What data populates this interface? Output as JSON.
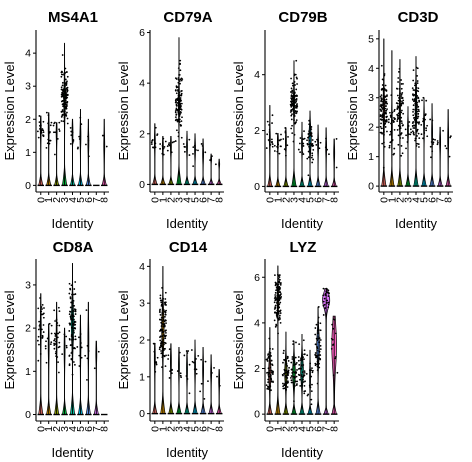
{
  "colors": {
    "0": "#F8766D",
    "1": "#D39200",
    "2": "#93AA00",
    "3": "#00BA38",
    "4": "#00C19F",
    "5": "#00B9E3",
    "6": "#619CFF",
    "7": "#DB72FB",
    "8": "#FF61C3"
  },
  "chart_data": [
    {
      "type": "violin",
      "title": "MS4A1",
      "xlabel": "Identity",
      "ylabel": "Expression Level",
      "categories": [
        "0",
        "1",
        "2",
        "3",
        "4",
        "5",
        "6",
        "7",
        "8"
      ],
      "ylim": [
        -0.2,
        4.7
      ],
      "yticks": [
        0,
        1,
        2,
        3,
        4
      ],
      "series": [
        {
          "category": "0",
          "max": 2.1,
          "center": 1.7,
          "spread": 0.25,
          "npts": 18
        },
        {
          "category": "1",
          "max": 2.2,
          "center": 1.7,
          "spread": 0.3,
          "npts": 14
        },
        {
          "category": "2",
          "max": 1.9,
          "center": 1.6,
          "spread": 0.25,
          "npts": 10
        },
        {
          "category": "3",
          "max": 4.3,
          "center": 2.6,
          "spread": 0.45,
          "npts": 120,
          "violin_width": 0.2
        },
        {
          "category": "4",
          "max": 2.0,
          "center": 1.6,
          "spread": 0.25,
          "npts": 8
        },
        {
          "category": "5",
          "max": 2.3,
          "center": 1.5,
          "spread": 0.3,
          "npts": 6
        },
        {
          "category": "6",
          "max": 2.0,
          "center": 1.3,
          "spread": 0.3,
          "npts": 4
        },
        {
          "category": "7",
          "max": 0.0,
          "npts": 0
        },
        {
          "category": "8",
          "max": 2.0,
          "center": 1.2,
          "spread": 0.3,
          "npts": 2
        }
      ]
    },
    {
      "type": "violin",
      "title": "CD79A",
      "xlabel": "Identity",
      "ylabel": "Expression Level",
      "categories": [
        "0",
        "1",
        "2",
        "3",
        "4",
        "5",
        "6",
        "7",
        "8"
      ],
      "ylim": [
        -0.3,
        6.1
      ],
      "yticks": [
        0,
        2,
        4,
        6
      ],
      "series": [
        {
          "category": "0",
          "max": 2.4,
          "center": 1.7,
          "spread": 0.3,
          "npts": 12
        },
        {
          "category": "1",
          "max": 1.9,
          "center": 1.5,
          "spread": 0.25,
          "npts": 10
        },
        {
          "category": "2",
          "max": 1.9,
          "center": 1.5,
          "spread": 0.3,
          "npts": 9
        },
        {
          "category": "3",
          "max": 5.8,
          "center": 3.2,
          "spread": 0.55,
          "npts": 120,
          "violin_width": 0.15
        },
        {
          "category": "4",
          "max": 2.1,
          "center": 1.5,
          "spread": 0.3,
          "npts": 6
        },
        {
          "category": "5",
          "max": 2.0,
          "center": 1.4,
          "spread": 0.3,
          "npts": 6
        },
        {
          "category": "6",
          "max": 1.8,
          "center": 1.2,
          "spread": 0.3,
          "npts": 3
        },
        {
          "category": "7",
          "max": 1.2,
          "center": 1.0,
          "spread": 0.1,
          "npts": 2
        },
        {
          "category": "8",
          "max": 1.0,
          "center": 0.8,
          "spread": 0.1,
          "npts": 1
        }
      ]
    },
    {
      "type": "violin",
      "title": "CD79B",
      "xlabel": "Identity",
      "ylabel": "Expression Level",
      "categories": [
        "0",
        "1",
        "2",
        "3",
        "4",
        "5",
        "6",
        "7",
        "8"
      ],
      "ylim": [
        -0.2,
        5.6
      ],
      "yticks": [
        0,
        2,
        4
      ],
      "series": [
        {
          "category": "0",
          "max": 2.9,
          "center": 1.7,
          "spread": 0.3,
          "npts": 16
        },
        {
          "category": "1",
          "max": 1.9,
          "center": 1.6,
          "spread": 0.25,
          "npts": 14
        },
        {
          "category": "2",
          "max": 2.1,
          "center": 1.6,
          "spread": 0.3,
          "npts": 10
        },
        {
          "category": "3",
          "max": 4.5,
          "center": 3.0,
          "spread": 0.5,
          "npts": 110,
          "violin_width": 0.15
        },
        {
          "category": "4",
          "max": 2.3,
          "center": 1.5,
          "spread": 0.3,
          "npts": 12
        },
        {
          "category": "5",
          "max": 2.7,
          "center": 1.7,
          "spread": 0.4,
          "npts": 40,
          "violin_width": 0.3
        },
        {
          "category": "6",
          "max": 2.2,
          "center": 1.5,
          "spread": 0.3,
          "npts": 6
        },
        {
          "category": "7",
          "max": 2.1,
          "center": 1.4,
          "spread": 0.3,
          "npts": 4
        },
        {
          "category": "8",
          "max": 1.7,
          "center": 1.2,
          "spread": 0.3,
          "npts": 2
        }
      ]
    },
    {
      "type": "violin",
      "title": "CD3D",
      "xlabel": "Identity",
      "ylabel": "Expression Level",
      "categories": [
        "0",
        "1",
        "2",
        "3",
        "4",
        "5",
        "6",
        "7",
        "8"
      ],
      "ylim": [
        -0.2,
        5.3
      ],
      "yticks": [
        0,
        1,
        2,
        3,
        4,
        5
      ],
      "series": [
        {
          "category": "0",
          "max": 5.0,
          "center": 2.6,
          "spread": 0.6,
          "npts": 110,
          "violin_width": 0.2
        },
        {
          "category": "1",
          "max": 4.6,
          "center": 2.0,
          "spread": 0.5,
          "npts": 30
        },
        {
          "category": "2",
          "max": 4.3,
          "center": 2.6,
          "spread": 0.6,
          "npts": 80,
          "violin_width": 0.15
        },
        {
          "category": "3",
          "max": 2.7,
          "center": 1.9,
          "spread": 0.3,
          "npts": 10
        },
        {
          "category": "4",
          "max": 4.4,
          "center": 2.7,
          "spread": 0.6,
          "npts": 100,
          "violin_width": 0.2
        },
        {
          "category": "5",
          "max": 3.0,
          "center": 2.1,
          "spread": 0.4,
          "npts": 18
        },
        {
          "category": "6",
          "max": 2.8,
          "center": 1.8,
          "spread": 0.4,
          "npts": 10
        },
        {
          "category": "7",
          "max": 2.0,
          "center": 1.5,
          "spread": 0.3,
          "npts": 4
        },
        {
          "category": "8",
          "max": 2.6,
          "center": 1.6,
          "spread": 0.4,
          "npts": 5
        }
      ]
    },
    {
      "type": "violin",
      "title": "CD8A",
      "xlabel": "Identity",
      "ylabel": "Expression Level",
      "categories": [
        "0",
        "1",
        "2",
        "3",
        "4",
        "5",
        "6",
        "7",
        "8"
      ],
      "ylim": [
        -0.15,
        3.6
      ],
      "yticks": [
        0,
        1,
        2,
        3
      ],
      "series": [
        {
          "category": "0",
          "max": 2.8,
          "center": 2.0,
          "spread": 0.35,
          "npts": 28
        },
        {
          "category": "1",
          "max": 2.1,
          "center": 1.6,
          "spread": 0.3,
          "npts": 10
        },
        {
          "category": "2",
          "max": 2.6,
          "center": 1.8,
          "spread": 0.35,
          "npts": 30
        },
        {
          "category": "3",
          "max": 2.0,
          "center": 1.5,
          "spread": 0.3,
          "npts": 5
        },
        {
          "category": "4",
          "max": 3.5,
          "center": 2.1,
          "spread": 0.45,
          "npts": 90,
          "violin_width": 0.3
        },
        {
          "category": "5",
          "max": 2.3,
          "center": 1.6,
          "spread": 0.35,
          "npts": 8
        },
        {
          "category": "6",
          "max": 2.6,
          "center": 1.7,
          "spread": 0.4,
          "npts": 6
        },
        {
          "category": "7",
          "max": 1.7,
          "center": 1.4,
          "spread": 0.2,
          "npts": 2
        },
        {
          "category": "8",
          "max": 0.0,
          "npts": 0
        }
      ]
    },
    {
      "type": "violin",
      "title": "CD14",
      "xlabel": "Identity",
      "ylabel": "Expression Level",
      "categories": [
        "0",
        "1",
        "2",
        "3",
        "4",
        "5",
        "6",
        "7",
        "8"
      ],
      "ylim": [
        -0.2,
        4.2
      ],
      "yticks": [
        0,
        1,
        2,
        3,
        4
      ],
      "series": [
        {
          "category": "0",
          "max": 1.9,
          "center": 1.5,
          "spread": 0.3,
          "npts": 8
        },
        {
          "category": "1",
          "max": 4.0,
          "center": 2.3,
          "spread": 0.5,
          "npts": 110,
          "violin_width": 0.3
        },
        {
          "category": "2",
          "max": 1.9,
          "center": 1.4,
          "spread": 0.3,
          "npts": 8
        },
        {
          "category": "3",
          "max": 1.8,
          "center": 1.3,
          "spread": 0.3,
          "npts": 5
        },
        {
          "category": "4",
          "max": 1.7,
          "center": 1.2,
          "spread": 0.3,
          "npts": 8
        },
        {
          "category": "5",
          "max": 2.0,
          "center": 1.3,
          "spread": 0.3,
          "npts": 8
        },
        {
          "category": "6",
          "max": 1.8,
          "center": 1.2,
          "spread": 0.3,
          "npts": 5
        },
        {
          "category": "7",
          "max": 1.6,
          "center": 1.1,
          "spread": 0.2,
          "npts": 3
        },
        {
          "category": "8",
          "max": 1.2,
          "center": 0.9,
          "spread": 0.2,
          "npts": 2
        }
      ]
    },
    {
      "type": "violin",
      "title": "LYZ",
      "xlabel": "Identity",
      "ylabel": "Expression Level",
      "categories": [
        "0",
        "1",
        "2",
        "3",
        "4",
        "5",
        "6",
        "7",
        "8"
      ],
      "ylim": [
        -0.3,
        6.8
      ],
      "yticks": [
        0,
        2,
        4,
        6
      ],
      "series": [
        {
          "category": "0",
          "max": 3.8,
          "center": 1.8,
          "spread": 0.5,
          "npts": 60,
          "violin_width": 0.3
        },
        {
          "category": "1",
          "max": 6.5,
          "center": 5.0,
          "spread": 0.5,
          "npts": 120,
          "violin_width": 0.2
        },
        {
          "category": "2",
          "max": 3.6,
          "center": 1.8,
          "spread": 0.5,
          "npts": 50,
          "violin_width": 0.3
        },
        {
          "category": "3",
          "max": 3.2,
          "center": 1.8,
          "spread": 0.5,
          "npts": 40,
          "violin_width": 0.35
        },
        {
          "category": "4",
          "max": 3.5,
          "center": 1.9,
          "spread": 0.5,
          "npts": 40,
          "violin_width": 0.35
        },
        {
          "category": "5",
          "max": 2.8,
          "center": 1.6,
          "spread": 0.5,
          "npts": 20
        },
        {
          "category": "6",
          "max": 4.7,
          "center": 3.0,
          "spread": 0.6,
          "npts": 50,
          "violin_width": 0.35
        },
        {
          "category": "7",
          "max": 5.5,
          "center": 5.0,
          "spread": 0.3,
          "npts": 25,
          "violin_width": 0.9,
          "shape": "top"
        },
        {
          "category": "8",
          "max": 4.3,
          "center": 3.0,
          "spread": 0.8,
          "npts": 14,
          "violin_width": 0.9,
          "shape": "broad"
        }
      ]
    }
  ]
}
